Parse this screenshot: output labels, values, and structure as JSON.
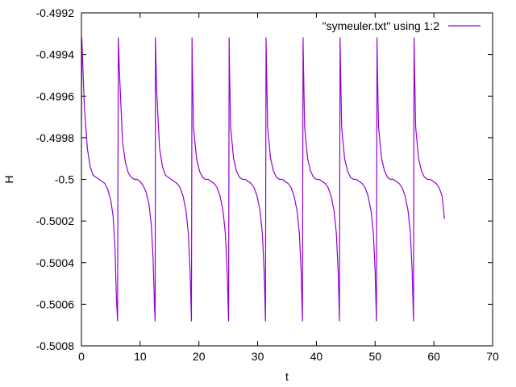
{
  "chart_data": {
    "type": "line",
    "title": "",
    "xlabel": "t",
    "ylabel": "H",
    "xlim": [
      0,
      70
    ],
    "ylim": [
      -0.5008,
      -0.4992
    ],
    "x_ticks": [
      0,
      10,
      20,
      30,
      40,
      50,
      60,
      70
    ],
    "x_tick_labels": [
      "0",
      "10",
      "20",
      "30",
      "40",
      "50",
      "60",
      "70"
    ],
    "y_ticks": [
      -0.5008,
      -0.5006,
      -0.5004,
      -0.5002,
      -0.5,
      -0.4998,
      -0.4996,
      -0.4994,
      -0.4992
    ],
    "y_tick_labels": [
      "-0.5008",
      "-0.5006",
      "-0.5004",
      "-0.5002",
      "-0.5",
      "-0.4998",
      "-0.4996",
      "-0.4994",
      "-0.4992"
    ],
    "grid": false,
    "legend_position": "top-right",
    "series": [
      {
        "name": "\"symeuler.txt\" using 1:2",
        "color": "#9400d3",
        "x": [
          0,
          0.06,
          0.5,
          1.0,
          1.5,
          2.0,
          2.5,
          3.0,
          3.5,
          4.0,
          4.5,
          5.0,
          5.4,
          5.7,
          5.95,
          6.15,
          6.28,
          6.45,
          7.0,
          7.5,
          8.0,
          8.5,
          9.0,
          9.5,
          10.0,
          10.5,
          11.0,
          11.5,
          11.9,
          12.2,
          12.45,
          12.55,
          12.6,
          12.8,
          13.3,
          13.8,
          14.3,
          14.8,
          15.3,
          15.8,
          16.3,
          16.8,
          17.3,
          17.8,
          18.2,
          18.5,
          18.73,
          18.83,
          18.88,
          19.08,
          19.6,
          20.1,
          20.6,
          21.1,
          21.6,
          22.1,
          22.6,
          23.1,
          23.6,
          24.1,
          24.5,
          24.8,
          25.05,
          25.15,
          25.2,
          25.4,
          25.9,
          26.4,
          26.9,
          27.4,
          27.9,
          28.4,
          28.9,
          29.4,
          29.9,
          30.4,
          30.8,
          31.1,
          31.33,
          31.43,
          31.5,
          31.7,
          32.2,
          32.7,
          33.2,
          33.7,
          34.2,
          34.7,
          35.2,
          35.7,
          36.2,
          36.7,
          37.1,
          37.4,
          37.63,
          37.73,
          37.8,
          38.0,
          38.5,
          39.0,
          39.5,
          40.0,
          40.5,
          41.0,
          41.5,
          42.0,
          42.5,
          43.0,
          43.4,
          43.7,
          43.93,
          44.03,
          44.1,
          44.3,
          44.8,
          45.3,
          45.8,
          46.3,
          46.8,
          47.3,
          47.8,
          48.3,
          48.8,
          49.3,
          49.7,
          50.0,
          50.22,
          50.32,
          50.38,
          50.58,
          51.1,
          51.6,
          52.1,
          52.6,
          53.1,
          53.6,
          54.1,
          54.6,
          55.1,
          55.6,
          56.0,
          56.3,
          56.53,
          56.63,
          56.7,
          56.9,
          57.4,
          57.9,
          58.4,
          58.9,
          59.4,
          59.9,
          60.4,
          60.9,
          61.4,
          61.8
        ],
        "y": [
          -0.49972,
          -0.49932,
          -0.49965,
          -0.49985,
          -0.49994,
          -0.49998,
          -0.49999,
          -0.5,
          -0.50001,
          -0.50002,
          -0.50005,
          -0.5001,
          -0.50018,
          -0.50032,
          -0.50057,
          -0.50068,
          -0.49932,
          -0.49947,
          -0.49982,
          -0.49992,
          -0.49997,
          -0.49999,
          -0.5,
          -0.5,
          -0.50001,
          -0.50003,
          -0.50006,
          -0.50012,
          -0.50022,
          -0.50038,
          -0.50062,
          -0.50068,
          -0.49932,
          -0.49957,
          -0.49985,
          -0.49994,
          -0.49998,
          -0.49999,
          -0.5,
          -0.50001,
          -0.50002,
          -0.50004,
          -0.50008,
          -0.50015,
          -0.50026,
          -0.50044,
          -0.50068,
          -0.49932,
          -0.49945,
          -0.49975,
          -0.4999,
          -0.49996,
          -0.49999,
          -0.5,
          -0.5,
          -0.50001,
          -0.50002,
          -0.50004,
          -0.50008,
          -0.50015,
          -0.50026,
          -0.50044,
          -0.50068,
          -0.49932,
          -0.49945,
          -0.49975,
          -0.4999,
          -0.49996,
          -0.49999,
          -0.5,
          -0.5,
          -0.50001,
          -0.50002,
          -0.50004,
          -0.50008,
          -0.50015,
          -0.50026,
          -0.50044,
          -0.50068,
          -0.49932,
          -0.49945,
          -0.49975,
          -0.4999,
          -0.49996,
          -0.49999,
          -0.5,
          -0.5,
          -0.50001,
          -0.50002,
          -0.50004,
          -0.50008,
          -0.50015,
          -0.50026,
          -0.50044,
          -0.50068,
          -0.49932,
          -0.49945,
          -0.49975,
          -0.4999,
          -0.49996,
          -0.49999,
          -0.5,
          -0.5,
          -0.50001,
          -0.50002,
          -0.50004,
          -0.50008,
          -0.50015,
          -0.50026,
          -0.50044,
          -0.50068,
          -0.49932,
          -0.49945,
          -0.49975,
          -0.4999,
          -0.49996,
          -0.49999,
          -0.5,
          -0.5,
          -0.50001,
          -0.50002,
          -0.50004,
          -0.50008,
          -0.50015,
          -0.50026,
          -0.50044,
          -0.50068,
          -0.49932,
          -0.49945,
          -0.49975,
          -0.4999,
          -0.49996,
          -0.49999,
          -0.5,
          -0.5,
          -0.50001,
          -0.50002,
          -0.50004,
          -0.50008,
          -0.50015,
          -0.50026,
          -0.50044,
          -0.50068,
          -0.49932,
          -0.49945,
          -0.49975,
          -0.4999,
          -0.49996,
          -0.49999,
          -0.5,
          -0.5,
          -0.50001,
          -0.50002,
          -0.50004,
          -0.50008,
          -0.50019
        ]
      }
    ]
  }
}
